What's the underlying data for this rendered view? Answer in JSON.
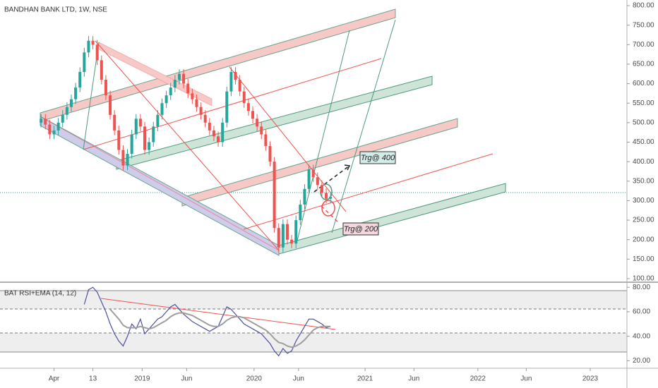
{
  "chart_data": [
    {
      "type": "candlestick",
      "title": "BANDHAN BANK LTD, 1W, NSE",
      "annotations": [
        "Trg@ 400",
        "Trg@ 200"
      ],
      "up_color": "#26a69a",
      "down_color": "#ef5350",
      "grid": false,
      "xlim": [
        -9.5,
        135.6
      ],
      "ylim": [
        100,
        800
      ],
      "yticks": [
        {
          "value": 100,
          "label": "100.00"
        },
        {
          "value": 150,
          "label": "150.00"
        },
        {
          "value": 200,
          "label": "200.00"
        },
        {
          "value": 250,
          "label": "250.00"
        },
        {
          "value": 300,
          "label": "300.00"
        },
        {
          "value": 350,
          "label": "350.00"
        },
        {
          "value": 400,
          "label": "400.00"
        },
        {
          "value": 450,
          "label": "450.00"
        },
        {
          "value": 500,
          "label": "500.00"
        },
        {
          "value": 550,
          "label": "550.00"
        },
        {
          "value": 600,
          "label": "600.00"
        },
        {
          "value": 650,
          "label": "650.00"
        },
        {
          "value": 700,
          "label": "700.00"
        },
        {
          "value": 750,
          "label": "750.00"
        },
        {
          "value": 800,
          "label": "800.00"
        }
      ],
      "open": [
        500,
        510,
        495,
        470,
        480,
        500,
        520,
        540,
        560,
        590,
        630,
        680,
        710,
        700,
        660,
        610,
        570,
        520,
        480,
        430,
        390,
        420,
        470,
        510,
        490,
        430,
        450,
        490,
        520,
        550,
        570,
        590,
        610,
        625,
        600,
        575,
        560,
        540,
        520,
        500,
        480,
        465,
        450,
        500,
        580,
        630,
        610,
        580,
        550,
        530,
        510,
        490,
        470,
        440,
        400,
        230,
        180,
        240,
        200,
        190,
        250,
        290,
        330,
        380,
        360,
        340,
        320,
        305
      ],
      "high": [
        522,
        522,
        507,
        492,
        512,
        532,
        552,
        572,
        602,
        642,
        692,
        722,
        722,
        712,
        672,
        622,
        582,
        532,
        492,
        442,
        432,
        482,
        522,
        522,
        502,
        462,
        502,
        532,
        562,
        582,
        602,
        622,
        637,
        637,
        612,
        587,
        572,
        552,
        532,
        512,
        492,
        477,
        512,
        592,
        642,
        642,
        622,
        592,
        562,
        542,
        522,
        502,
        482,
        452,
        412,
        242,
        252,
        252,
        212,
        262,
        302,
        342,
        392,
        392,
        372,
        352,
        332,
        322
      ],
      "low": [
        488,
        483,
        458,
        458,
        468,
        488,
        508,
        528,
        548,
        578,
        618,
        668,
        688,
        648,
        598,
        558,
        508,
        468,
        418,
        378,
        378,
        408,
        458,
        478,
        418,
        418,
        438,
        478,
        508,
        538,
        558,
        578,
        598,
        588,
        563,
        548,
        528,
        508,
        488,
        468,
        453,
        438,
        438,
        488,
        568,
        598,
        568,
        538,
        518,
        498,
        478,
        458,
        428,
        388,
        218,
        168,
        168,
        188,
        178,
        178,
        238,
        278,
        318,
        348,
        328,
        308,
        293,
        293
      ],
      "close": [
        510,
        495,
        470,
        480,
        500,
        520,
        540,
        560,
        590,
        630,
        680,
        710,
        700,
        660,
        610,
        570,
        520,
        480,
        430,
        390,
        420,
        470,
        510,
        490,
        430,
        450,
        490,
        520,
        550,
        570,
        590,
        610,
        625,
        600,
        575,
        560,
        540,
        520,
        500,
        480,
        465,
        450,
        500,
        580,
        630,
        610,
        580,
        550,
        530,
        510,
        490,
        470,
        440,
        400,
        230,
        180,
        240,
        200,
        190,
        250,
        290,
        330,
        380,
        360,
        340,
        320,
        305,
        310
      ]
    },
    {
      "type": "line",
      "title": "BAT RSI+EMA (14, 12)",
      "xlim": [
        -9.5,
        135.6
      ],
      "ylim": [
        15,
        83
      ],
      "yticks": [
        {
          "value": 20,
          "label": "20.00"
        },
        {
          "value": 40,
          "label": "40.00"
        },
        {
          "value": 60,
          "label": "60.00"
        },
        {
          "value": 80,
          "label": "80.00"
        }
      ],
      "xticks": [
        {
          "value": 3,
          "label": "Apr"
        },
        {
          "value": 12,
          "label": "13"
        },
        {
          "value": 23.4,
          "label": "2019"
        },
        {
          "value": 33.7,
          "label": "Jun"
        },
        {
          "value": 49.3,
          "label": "2020"
        },
        {
          "value": 59.6,
          "label": "Jun"
        },
        {
          "value": 75,
          "label": "2021"
        },
        {
          "value": 86.3,
          "label": "Jun"
        },
        {
          "value": 101.1,
          "label": "2022"
        },
        {
          "value": 112.3,
          "label": "Jun"
        },
        {
          "value": 127.1,
          "label": "2023"
        }
      ],
      "series": [
        {
          "color": "#4b4f9c",
          "values": [
            null,
            null,
            null,
            null,
            null,
            null,
            null,
            null,
            null,
            null,
            66,
            78,
            80,
            76,
            68,
            60,
            50,
            42,
            36,
            32,
            40,
            50,
            46,
            54,
            42,
            46,
            50,
            54,
            56,
            60,
            64,
            66,
            62,
            58,
            55,
            52,
            50,
            48,
            46,
            44,
            46,
            48,
            56,
            64,
            62,
            58,
            54,
            50,
            48,
            46,
            44,
            42,
            38,
            34,
            28,
            24,
            30,
            26,
            28,
            36,
            42,
            48,
            54,
            54,
            52,
            50,
            47,
            48
          ]
        },
        {
          "color": "#9e9e9e",
          "values": [
            null,
            null,
            null,
            null,
            null,
            null,
            null,
            null,
            null,
            null,
            null,
            null,
            null,
            null,
            null,
            null,
            62,
            58,
            54,
            49,
            47,
            47,
            47,
            48,
            47,
            46,
            47,
            49,
            51,
            53,
            56,
            58,
            59,
            59,
            58,
            57,
            55,
            53,
            51,
            49,
            48,
            48,
            50,
            53,
            55,
            56,
            56,
            55,
            53,
            51,
            49,
            47,
            45,
            42,
            38,
            35,
            34,
            32,
            31,
            32,
            34,
            37,
            41,
            45,
            47,
            48,
            48,
            48
          ]
        }
      ]
    }
  ]
}
